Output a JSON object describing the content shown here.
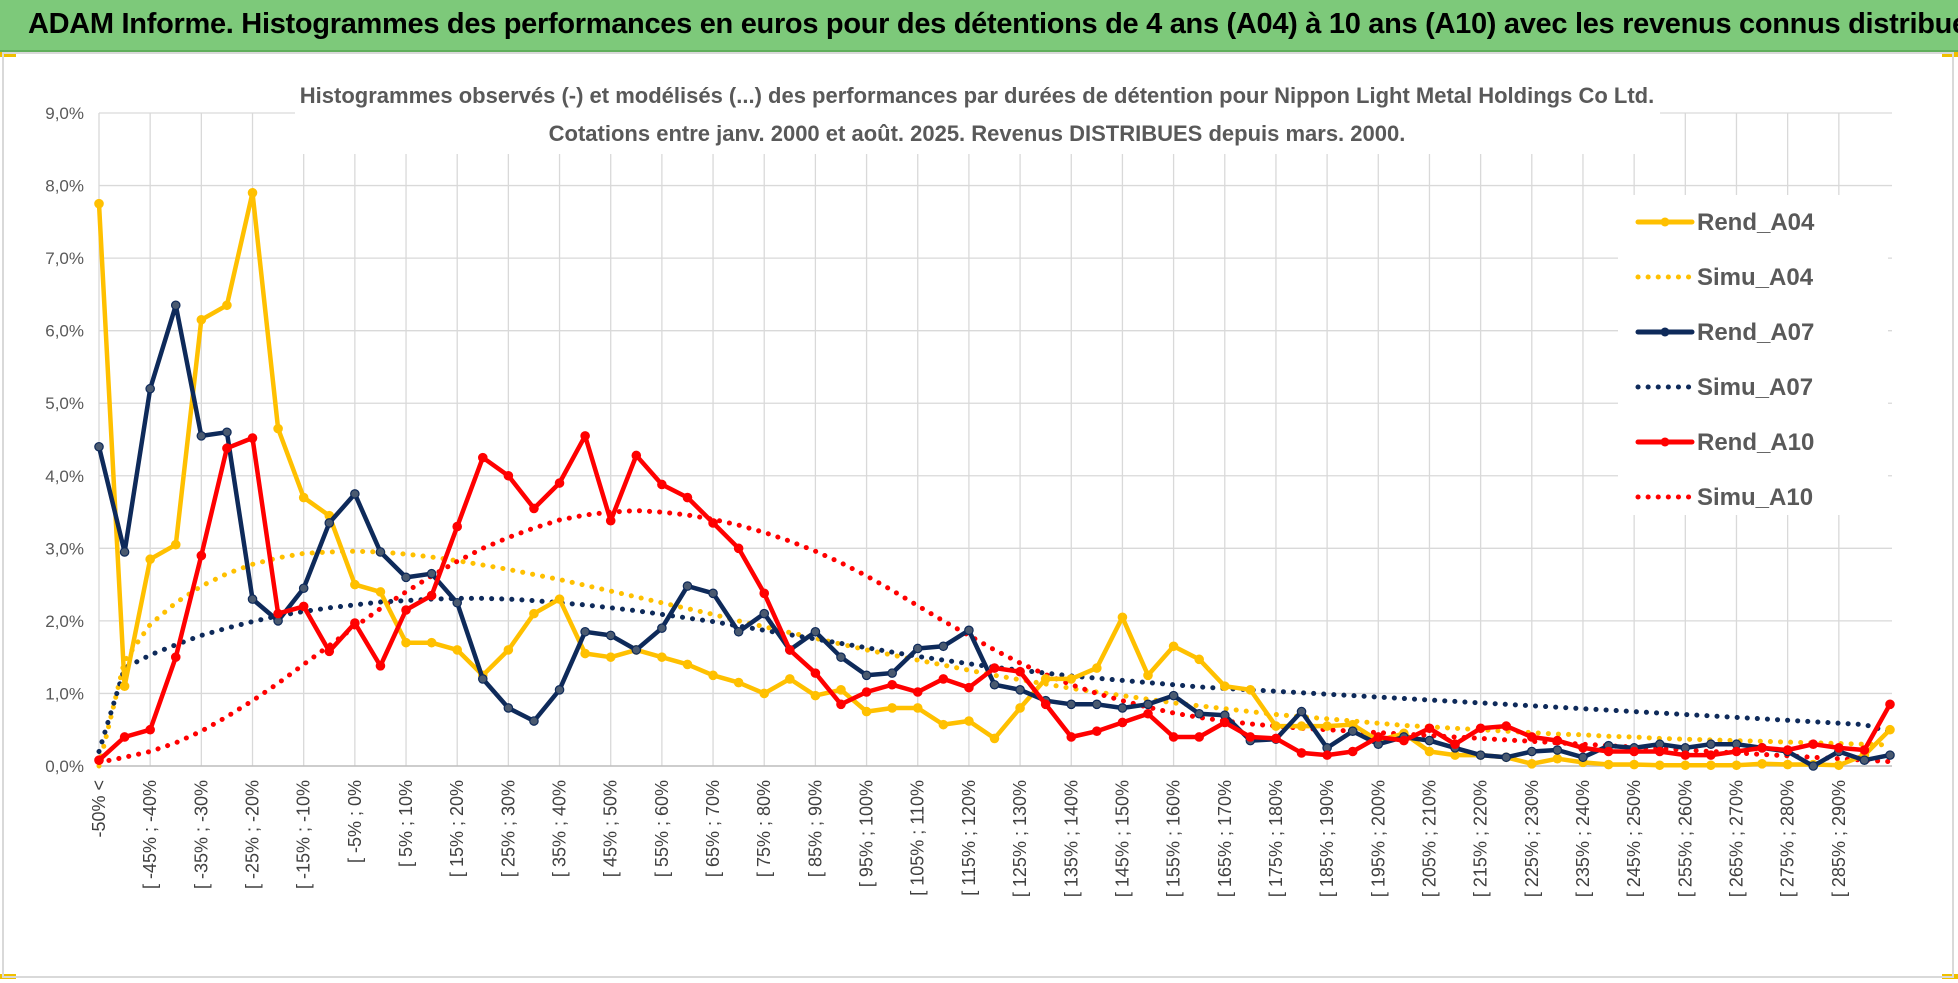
{
  "banner": {
    "title": "ADAM Informe. Histogrammes des performances en euros pour des détentions de 4 ans (A04) à 10 ans (A10) avec les revenus connus distribués",
    "background_color": "#7dc97a"
  },
  "chart_data": {
    "type": "line",
    "title": "Histogrammes observés (-) et modélisés (...) des performances par durées de détention pour Nippon Light Metal Holdings Co Ltd.",
    "subtitle": "Cotations entre janv. 2000 et août. 2025. Revenus DISTRIBUES depuis mars. 2000.",
    "xlabel": "",
    "ylabel": "",
    "ylim": [
      0,
      9
    ],
    "yticks": [
      "0,0%",
      "1,0%",
      "2,0%",
      "3,0%",
      "4,0%",
      "5,0%",
      "6,0%",
      "7,0%",
      "8,0%",
      "9,0%"
    ],
    "grid": true,
    "legend_position": "top-right",
    "categories": [
      "-50% <",
      "[ -50% ; -45%",
      "[ -45% ; -40%",
      "[ -40% ; -35%",
      "[ -35% ; -30%",
      "[ -30% ; -25%",
      "[ -25% ; -20%",
      "[ -20% ; -15%",
      "[ -15% ; -10%",
      "[ -10% ; -5%",
      "[ -5% ; 0%",
      "[ 0% ; 5%",
      "[ 5% ; 10%",
      "[ 10% ; 15%",
      "[ 15% ; 20%",
      "[ 20% ; 25%",
      "[ 25% ; 30%",
      "[ 30% ; 35%",
      "[ 35% ; 40%",
      "[ 40% ; 45%",
      "[ 45% ; 50%",
      "[ 50% ; 55%",
      "[ 55% ; 60%",
      "[ 60% ; 65%",
      "[ 65% ; 70%",
      "[ 70% ; 75%",
      "[ 75% ; 80%",
      "[ 80% ; 85%",
      "[ 85% ; 90%",
      "[ 90% ; 95%",
      "[ 95% ; 100%",
      "[ 100% ; 105%",
      "[ 105% ; 110%",
      "[ 110% ; 115%",
      "[ 115% ; 120%",
      "[ 120% ; 125%",
      "[ 125% ; 130%",
      "[ 130% ; 135%",
      "[ 135% ; 140%",
      "[ 140% ; 145%",
      "[ 145% ; 150%",
      "[ 150% ; 155%",
      "[ 155% ; 160%",
      "[ 160% ; 165%",
      "[ 165% ; 170%",
      "[ 170% ; 175%",
      "[ 175% ; 180%",
      "[ 180% ; 185%",
      "[ 185% ; 190%",
      "[ 190% ; 195%",
      "[ 195% ; 200%",
      "[ 200% ; 205%",
      "[ 205% ; 210%",
      "[ 210% ; 215%",
      "[ 215% ; 220%",
      "[ 220% ; 225%",
      "[ 225% ; 230%",
      "[ 230% ; 235%",
      "[ 235% ; 240%",
      "[ 240% ; 245%",
      "[ 245% ; 250%",
      "[ 250% ; 255%",
      "[ 255% ; 260%",
      "[ 260% ; 265%",
      "[ 265% ; 270%",
      "[ 270% ; 275%",
      "[ 275% ; 280%",
      "[ 280% ; 285%",
      "[ 285% ; 290%",
      "[ 290% ; 295%",
      "[ 295% ; 300%"
    ],
    "shown_category_labels": [
      "-50% <",
      "[ -45% ; -40%",
      "[ -35% ; -30%",
      "[ -25% ; -20%",
      "[ -15% ; -10%",
      "[ -5% ; 0%",
      "[ 5% ; 10%",
      "[ 15% ; 20%",
      "[ 25% ; 30%",
      "[ 35% ; 40%",
      "[ 45% ; 50%",
      "[ 55% ; 60%",
      "[ 65% ; 70%",
      "[ 75% ; 80%",
      "[ 85% ; 90%",
      "[ 95% ; 100%",
      "[ 105% ; 110%",
      "[ 115% ; 120%",
      "[ 125% ; 130%",
      "[ 135% ; 140%",
      "[ 145% ; 150%",
      "[ 155% ; 160%",
      "[ 165% ; 170%",
      "[ 175% ; 180%",
      "[ 185% ; 190%",
      "[ 195% ; 200%",
      "[ 205% ; 210%",
      "[ 215% ; 220%",
      "[ 225% ; 230%",
      "[ 235% ; 240%",
      "[ 245% ; 250%",
      "[ 255% ; 260%",
      "[ 265% ; 270%",
      "[ 275% ; 280%",
      "[ 285% ; 290%"
    ],
    "series": [
      {
        "name": "Rend_A04",
        "style": "solid",
        "markers": true,
        "color": "#ffc000",
        "values": [
          7.75,
          1.1,
          2.85,
          3.05,
          6.15,
          6.35,
          7.9,
          4.65,
          3.7,
          3.45,
          2.5,
          2.4,
          1.7,
          1.7,
          1.6,
          1.25,
          1.6,
          2.1,
          2.3,
          1.55,
          1.5,
          1.6,
          1.5,
          1.4,
          1.25,
          1.15,
          1.0,
          1.2,
          0.97,
          1.05,
          0.75,
          0.8,
          0.8,
          0.57,
          0.62,
          0.38,
          0.8,
          1.2,
          1.2,
          1.35,
          2.05,
          1.25,
          1.65,
          1.47,
          1.1,
          1.05,
          0.55,
          0.55,
          0.55,
          0.57,
          0.35,
          0.45,
          0.2,
          0.15,
          0.15,
          0.12,
          0.03,
          0.1,
          0.05,
          0.02,
          0.02,
          0.01,
          0.01,
          0.01,
          0.01,
          0.03,
          0.02,
          0.02,
          0.01,
          0.15,
          0.5
        ]
      },
      {
        "name": "Simu_A04",
        "style": "dotted",
        "markers": false,
        "color": "#ffc000",
        "values": [
          0.0,
          1.45,
          1.95,
          2.25,
          2.48,
          2.65,
          2.78,
          2.87,
          2.93,
          2.95,
          2.96,
          2.95,
          2.92,
          2.88,
          2.83,
          2.77,
          2.71,
          2.64,
          2.57,
          2.49,
          2.41,
          2.33,
          2.25,
          2.17,
          2.09,
          2.0,
          1.92,
          1.84,
          1.76,
          1.68,
          1.6,
          1.53,
          1.46,
          1.39,
          1.32,
          1.25,
          1.19,
          1.13,
          1.07,
          1.02,
          0.97,
          0.92,
          0.87,
          0.83,
          0.79,
          0.75,
          0.71,
          0.68,
          0.65,
          0.62,
          0.59,
          0.56,
          0.54,
          0.52,
          0.5,
          0.48,
          0.46,
          0.44,
          0.43,
          0.41,
          0.4,
          0.38,
          0.37,
          0.36,
          0.35,
          0.34,
          0.33,
          0.32,
          0.31,
          0.3,
          0.29
        ]
      },
      {
        "name": "Rend_A07",
        "style": "solid",
        "markers": true,
        "color": "#0e2a5a",
        "values": [
          4.4,
          2.95,
          5.2,
          6.35,
          4.55,
          4.6,
          2.3,
          2.0,
          2.45,
          3.35,
          3.75,
          2.95,
          2.6,
          2.65,
          2.25,
          1.2,
          0.8,
          0.62,
          1.05,
          1.85,
          1.8,
          1.6,
          1.9,
          2.48,
          2.38,
          1.85,
          2.1,
          1.6,
          1.85,
          1.5,
          1.25,
          1.28,
          1.62,
          1.65,
          1.87,
          1.12,
          1.05,
          0.9,
          0.85,
          0.85,
          0.8,
          0.85,
          0.97,
          0.72,
          0.7,
          0.35,
          0.37,
          0.75,
          0.25,
          0.48,
          0.3,
          0.4,
          0.35,
          0.25,
          0.15,
          0.12,
          0.2,
          0.22,
          0.12,
          0.28,
          0.25,
          0.3,
          0.25,
          0.3,
          0.3,
          0.25,
          0.2,
          0.0,
          0.2,
          0.08,
          0.15
        ]
      },
      {
        "name": "Simu_A07",
        "style": "dotted",
        "markers": false,
        "color": "#0e2a5a",
        "values": [
          0.2,
          1.35,
          1.53,
          1.67,
          1.8,
          1.9,
          1.99,
          2.07,
          2.13,
          2.18,
          2.22,
          2.26,
          2.28,
          2.3,
          2.31,
          2.31,
          2.3,
          2.28,
          2.25,
          2.22,
          2.18,
          2.14,
          2.09,
          2.04,
          1.99,
          1.93,
          1.87,
          1.81,
          1.75,
          1.69,
          1.63,
          1.57,
          1.51,
          1.46,
          1.41,
          1.36,
          1.32,
          1.28,
          1.24,
          1.21,
          1.18,
          1.15,
          1.12,
          1.09,
          1.07,
          1.05,
          1.03,
          1.01,
          0.99,
          0.97,
          0.95,
          0.93,
          0.91,
          0.89,
          0.87,
          0.85,
          0.83,
          0.81,
          0.79,
          0.77,
          0.75,
          0.73,
          0.71,
          0.69,
          0.67,
          0.65,
          0.63,
          0.61,
          0.59,
          0.57,
          0.47
        ]
      },
      {
        "name": "Rend_A10",
        "style": "solid",
        "markers": true,
        "color": "#ff0000",
        "values": [
          0.08,
          0.4,
          0.5,
          1.5,
          2.9,
          4.38,
          4.52,
          2.1,
          2.2,
          1.58,
          1.97,
          1.38,
          2.15,
          2.35,
          3.3,
          4.25,
          4.0,
          3.55,
          3.9,
          4.55,
          3.38,
          4.28,
          3.88,
          3.7,
          3.35,
          3.0,
          2.38,
          1.6,
          1.28,
          0.85,
          1.02,
          1.12,
          1.02,
          1.2,
          1.08,
          1.35,
          1.3,
          0.85,
          0.4,
          0.48,
          0.6,
          0.72,
          0.4,
          0.4,
          0.6,
          0.4,
          0.38,
          0.18,
          0.15,
          0.2,
          0.4,
          0.35,
          0.52,
          0.3,
          0.52,
          0.55,
          0.4,
          0.35,
          0.25,
          0.2,
          0.2,
          0.2,
          0.15,
          0.15,
          0.2,
          0.25,
          0.22,
          0.3,
          0.25,
          0.22,
          0.85
        ]
      },
      {
        "name": "Simu_A10",
        "style": "dotted",
        "markers": false,
        "color": "#ff0000",
        "values": [
          0.05,
          0.12,
          0.2,
          0.32,
          0.48,
          0.68,
          0.9,
          1.14,
          1.4,
          1.66,
          1.92,
          2.17,
          2.4,
          2.62,
          2.82,
          3.0,
          3.15,
          3.28,
          3.39,
          3.46,
          3.5,
          3.52,
          3.5,
          3.46,
          3.4,
          3.32,
          3.22,
          3.1,
          2.96,
          2.8,
          2.62,
          2.42,
          2.21,
          2.0,
          1.8,
          1.6,
          1.42,
          1.26,
          1.12,
          1.0,
          0.9,
          0.81,
          0.73,
          0.67,
          0.62,
          0.58,
          0.55,
          0.52,
          0.5,
          0.48,
          0.46,
          0.44,
          0.42,
          0.4,
          0.38,
          0.36,
          0.34,
          0.32,
          0.3,
          0.28,
          0.26,
          0.24,
          0.22,
          0.2,
          0.18,
          0.16,
          0.14,
          0.12,
          0.1,
          0.08,
          0.06
        ]
      }
    ]
  }
}
